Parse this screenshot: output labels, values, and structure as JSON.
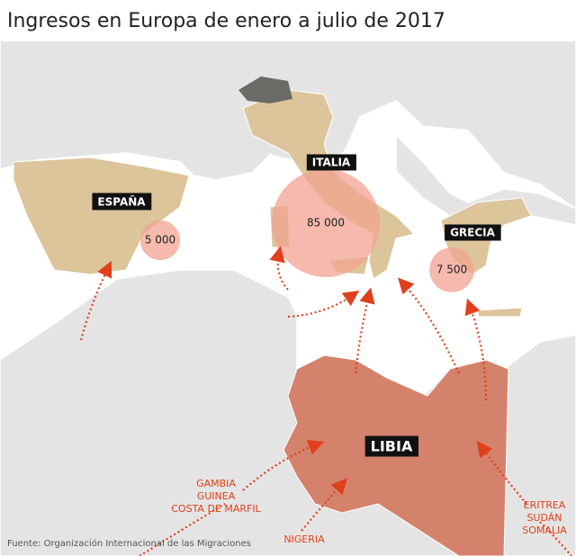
{
  "title": "Ingresos en Europa de enero a julio de 2017",
  "source": "Fuente: Organización Internacional de las Migraciones",
  "bubbles": [
    {
      "country": "ESPAÑA",
      "value": 5000,
      "value_label": "5 000"
    },
    {
      "country": "ITALIA",
      "value": 85000,
      "value_label": "85 000"
    },
    {
      "country": "GRECIA",
      "value": 7500,
      "value_label": "7 500"
    }
  ],
  "transit": "LIBIA",
  "origins": [
    {
      "lines": [
        "GAMBIA",
        "GUINEA",
        "COSTA DE MARFIL"
      ]
    },
    {
      "lines": [
        "NIGERIA"
      ]
    },
    {
      "lines": [
        "ERITREA",
        "SUDÁN",
        "SOMALIA"
      ]
    }
  ]
}
